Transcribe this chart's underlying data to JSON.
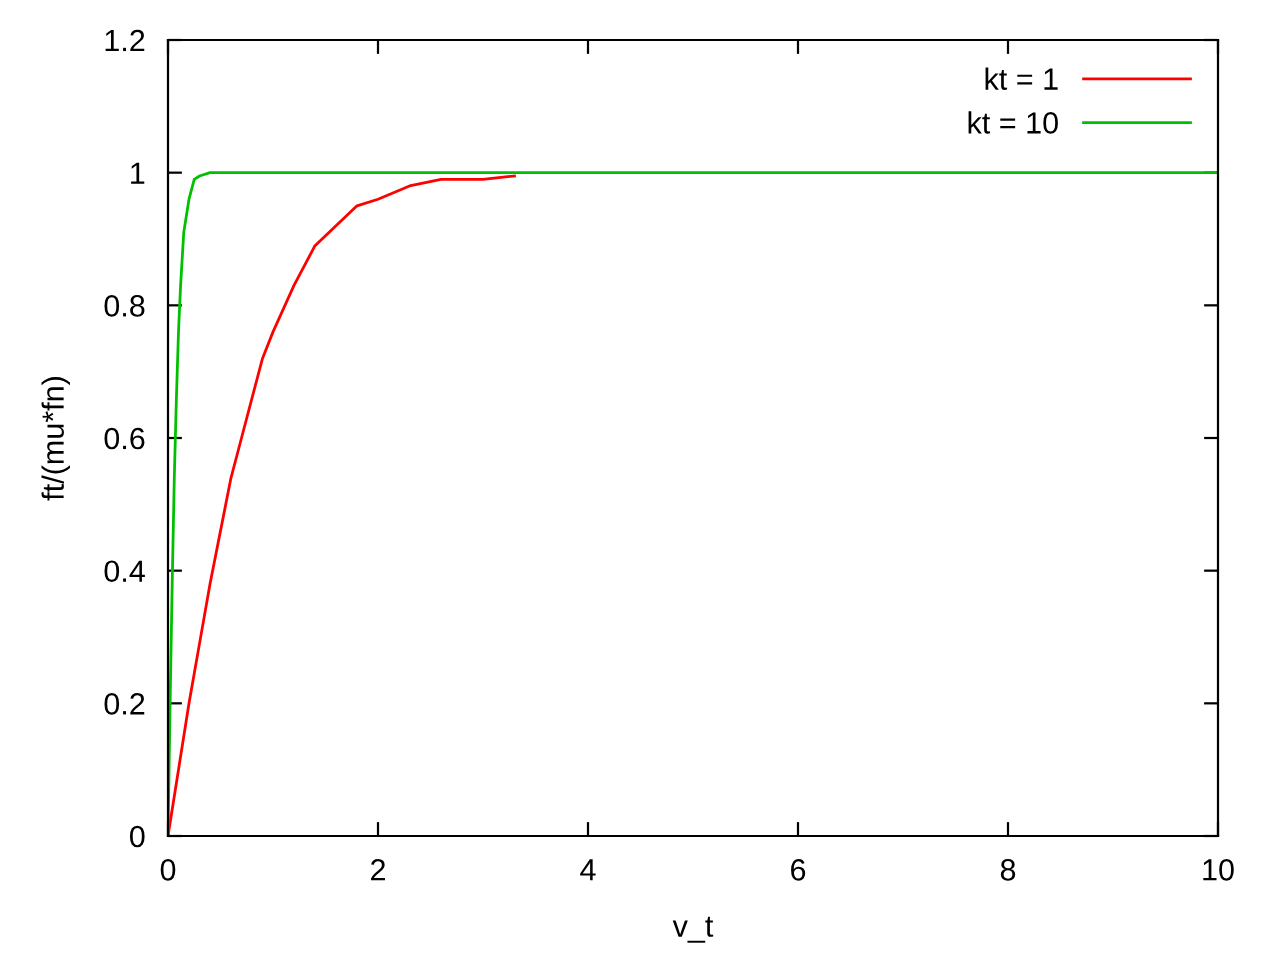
{
  "chart_data": {
    "type": "line",
    "xlabel": "v_t",
    "ylabel": "ft/(mu*fn)",
    "xlim": [
      0,
      10
    ],
    "ylim": [
      0,
      1.2
    ],
    "xticks": [
      0,
      2,
      4,
      6,
      8,
      10
    ],
    "yticks": [
      0,
      0.2,
      0.4,
      0.6,
      0.8,
      1,
      1.2
    ],
    "grid": false,
    "legend": "top right",
    "marker": "none",
    "line_style": "solid",
    "series": [
      {
        "name": "kt = 1",
        "color": "#ff0000",
        "x": [
          0,
          0.1,
          0.2,
          0.3,
          0.4,
          0.5,
          0.6,
          0.7,
          0.8,
          0.9,
          1,
          1.2,
          1.4,
          1.6,
          1.8,
          2,
          2.3,
          2.6,
          3,
          3.3
        ],
        "values": [
          0,
          0.1,
          0.2,
          0.29,
          0.38,
          0.46,
          0.54,
          0.6,
          0.66,
          0.72,
          0.76,
          0.83,
          0.89,
          0.92,
          0.95,
          0.96,
          0.98,
          0.99,
          0.99,
          0.995
        ]
      },
      {
        "name": "kt = 10",
        "color": "#00c000",
        "x": [
          0,
          0.02,
          0.04,
          0.06,
          0.08,
          0.1,
          0.12,
          0.15,
          0.2,
          0.25,
          0.3,
          0.4,
          10
        ],
        "values": [
          0,
          0.2,
          0.38,
          0.54,
          0.66,
          0.76,
          0.83,
          0.91,
          0.96,
          0.99,
          0.995,
          1,
          1
        ]
      }
    ]
  }
}
